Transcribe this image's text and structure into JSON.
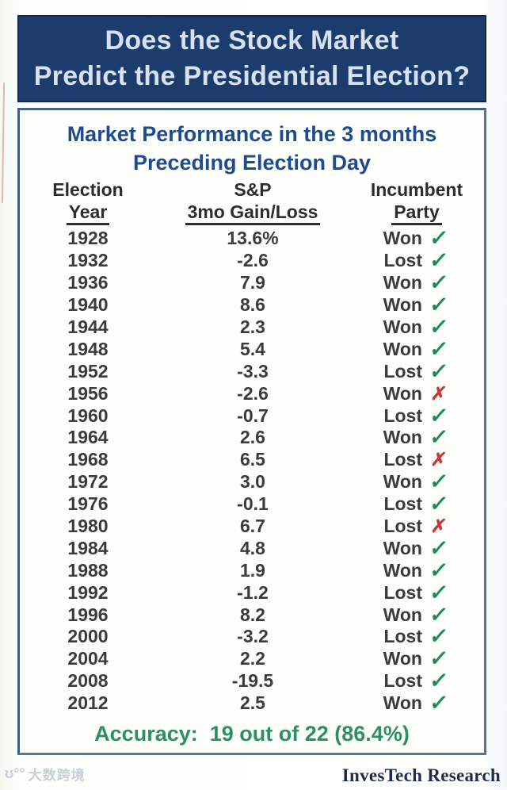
{
  "banner": {
    "line1": "Does the Stock Market",
    "line2": "Predict the Presidential Election?"
  },
  "subtitle": {
    "line1": "Market Performance in the 3 months",
    "line2": "Preceding Election Day"
  },
  "table": {
    "headers": [
      {
        "line1": "Election",
        "line2": "Year"
      },
      {
        "line1": "S&P",
        "line2": "3mo Gain/Loss"
      },
      {
        "line1": "Incumbent",
        "line2": "Party"
      }
    ],
    "rows": [
      {
        "year": "1928",
        "gain": "13.6%",
        "party": "Won",
        "correct": true
      },
      {
        "year": "1932",
        "gain": "-2.6",
        "party": "Lost",
        "correct": true
      },
      {
        "year": "1936",
        "gain": "7.9",
        "party": "Won",
        "correct": true
      },
      {
        "year": "1940",
        "gain": "8.6",
        "party": "Won",
        "correct": true
      },
      {
        "year": "1944",
        "gain": "2.3",
        "party": "Won",
        "correct": true
      },
      {
        "year": "1948",
        "gain": "5.4",
        "party": "Won",
        "correct": true
      },
      {
        "year": "1952",
        "gain": "-3.3",
        "party": "Lost",
        "correct": true
      },
      {
        "year": "1956",
        "gain": "-2.6",
        "party": "Won",
        "correct": false
      },
      {
        "year": "1960",
        "gain": "-0.7",
        "party": "Lost",
        "correct": true
      },
      {
        "year": "1964",
        "gain": "2.6",
        "party": "Won",
        "correct": true
      },
      {
        "year": "1968",
        "gain": "6.5",
        "party": "Lost",
        "correct": false
      },
      {
        "year": "1972",
        "gain": "3.0",
        "party": "Won",
        "correct": true
      },
      {
        "year": "1976",
        "gain": "-0.1",
        "party": "Lost",
        "correct": true
      },
      {
        "year": "1980",
        "gain": "6.7",
        "party": "Lost",
        "correct": false
      },
      {
        "year": "1984",
        "gain": "4.8",
        "party": "Won",
        "correct": true
      },
      {
        "year": "1988",
        "gain": "1.9",
        "party": "Won",
        "correct": true
      },
      {
        "year": "1992",
        "gain": "-1.2",
        "party": "Lost",
        "correct": true
      },
      {
        "year": "1996",
        "gain": "8.2",
        "party": "Won",
        "correct": true
      },
      {
        "year": "2000",
        "gain": "-3.2",
        "party": "Lost",
        "correct": true
      },
      {
        "year": "2004",
        "gain": "2.2",
        "party": "Won",
        "correct": true
      },
      {
        "year": "2008",
        "gain": "-19.5",
        "party": "Lost",
        "correct": true
      },
      {
        "year": "2012",
        "gain": "2.5",
        "party": "Won",
        "correct": true
      }
    ]
  },
  "accuracy_label": "Accuracy:  19 out of 22 (86.4%)",
  "footer": {
    "brand": "InvesTech Research",
    "watermark": "大数跨境"
  },
  "icons": {
    "check": "✓",
    "cross": "✗",
    "watermark_logo": "ʊ°°"
  },
  "colors": {
    "banner_bg": "#1b3c6c",
    "banner_text": "#d7e1f0",
    "subtitle_blue": "#1e4b8f",
    "table_text": "#3b3b3b",
    "check_green": "#1e8a5c",
    "cross_red": "#bf3a3a",
    "accuracy_green": "#2d8f66",
    "box_border": "#53749c",
    "brand_text": "#1b2c4e"
  },
  "chart_data": {
    "type": "table",
    "title": "Does the Stock Market Predict the Presidential Election?",
    "subtitle": "Market Performance in the 3 months Preceding Election Day",
    "columns": [
      "Election Year",
      "S&P 3mo Gain/Loss (%)",
      "Incumbent Party",
      "Prediction Correct"
    ],
    "rows": [
      [
        1928,
        13.6,
        "Won",
        true
      ],
      [
        1932,
        -2.6,
        "Lost",
        true
      ],
      [
        1936,
        7.9,
        "Won",
        true
      ],
      [
        1940,
        8.6,
        "Won",
        true
      ],
      [
        1944,
        2.3,
        "Won",
        true
      ],
      [
        1948,
        5.4,
        "Won",
        true
      ],
      [
        1952,
        -3.3,
        "Lost",
        true
      ],
      [
        1956,
        -2.6,
        "Won",
        false
      ],
      [
        1960,
        -0.7,
        "Lost",
        true
      ],
      [
        1964,
        2.6,
        "Won",
        true
      ],
      [
        1968,
        6.5,
        "Lost",
        false
      ],
      [
        1972,
        3.0,
        "Won",
        true
      ],
      [
        1976,
        -0.1,
        "Lost",
        true
      ],
      [
        1980,
        6.7,
        "Lost",
        false
      ],
      [
        1984,
        4.8,
        "Won",
        true
      ],
      [
        1988,
        1.9,
        "Won",
        true
      ],
      [
        1992,
        -1.2,
        "Lost",
        true
      ],
      [
        1996,
        8.2,
        "Won",
        true
      ],
      [
        2000,
        -3.2,
        "Lost",
        true
      ],
      [
        2004,
        2.2,
        "Won",
        true
      ],
      [
        2008,
        -19.5,
        "Lost",
        true
      ],
      [
        2012,
        2.5,
        "Won",
        true
      ]
    ],
    "accuracy": "19 out of 22 (86.4%)",
    "source": "InvesTech Research"
  }
}
